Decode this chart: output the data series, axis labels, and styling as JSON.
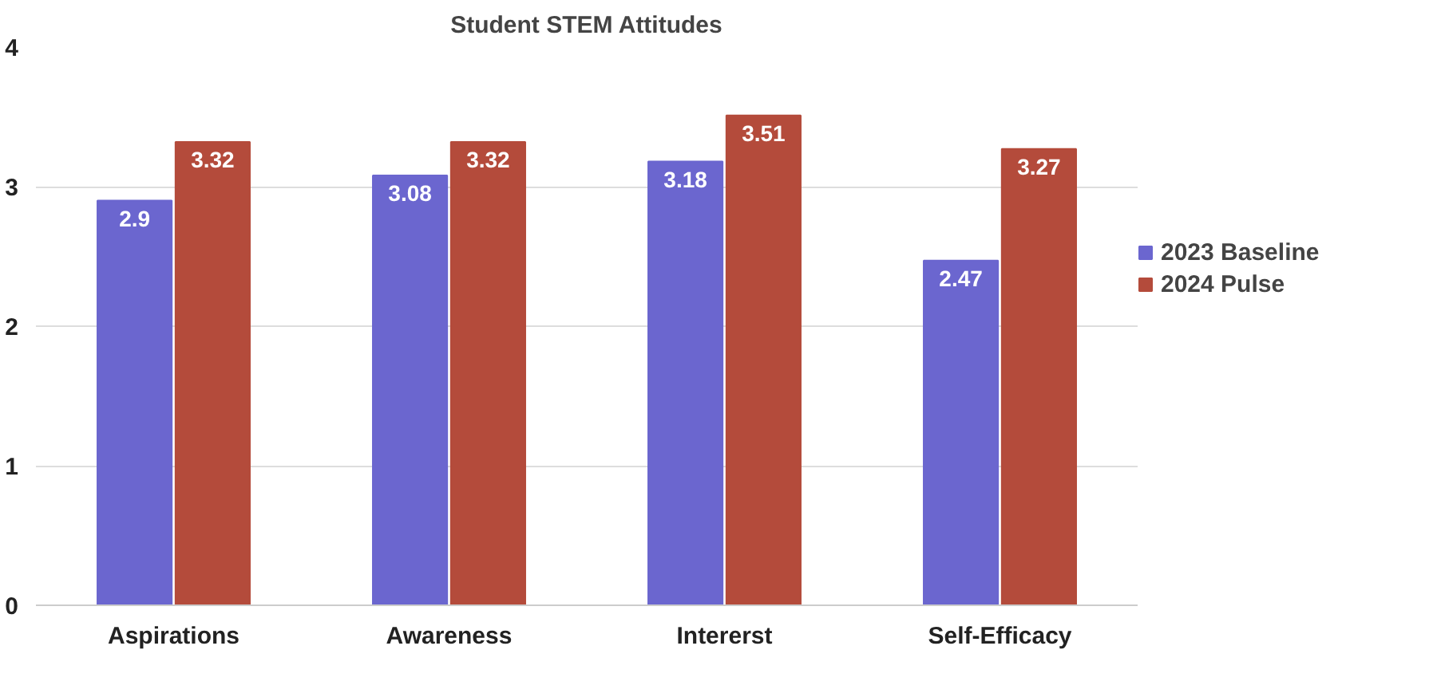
{
  "chart_data": {
    "type": "bar",
    "title": "Student STEM Attitudes",
    "categories": [
      "Aspirations",
      "Awareness",
      "Intererst",
      "Self-Efficacy"
    ],
    "series": [
      {
        "name": "2023 Baseline",
        "color": "#6b66cf",
        "values": [
          2.9,
          3.08,
          3.18,
          2.47
        ]
      },
      {
        "name": "2024 Pulse",
        "color": "#b44b3b",
        "values": [
          3.32,
          3.32,
          3.51,
          3.27
        ]
      }
    ],
    "ylim": [
      0,
      4
    ],
    "yticks": [
      0,
      1,
      2,
      3,
      4
    ],
    "grid": "y",
    "legend": "right",
    "data_labels": true
  }
}
